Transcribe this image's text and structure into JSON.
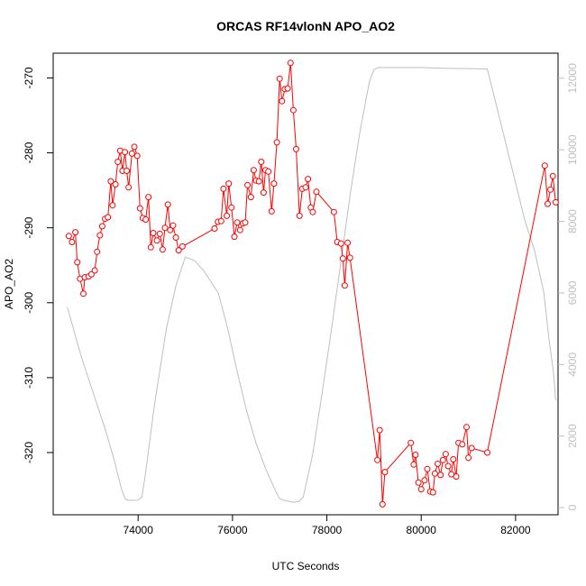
{
  "chart_data": {
    "type": "line",
    "title": "ORCAS RF14vlonN APO_AO2",
    "xlabel": "UTC Seconds",
    "ylabel": "APO_AO2",
    "xlim": [
      72200,
      82900
    ],
    "ylim": [
      -328.3,
      -266.7
    ],
    "y2lim": [
      -200,
      12700
    ],
    "grid": false,
    "x_ticks": [
      74000,
      76000,
      78000,
      80000,
      82000
    ],
    "x_tick_labels": [
      "74000",
      "76000",
      "78000",
      "80000",
      "82000"
    ],
    "y_ticks": [
      -320,
      -310,
      -300,
      -290,
      -280,
      -270
    ],
    "y_tick_labels": [
      "-320",
      "-310",
      "-300",
      "-290",
      "-280",
      "-270"
    ],
    "y2_ticks": [
      0,
      2000,
      4000,
      6000,
      8000,
      10000,
      12000
    ],
    "y2_tick_labels": [
      "0",
      "2000",
      "4000",
      "6000",
      "8000",
      "10000",
      "12000"
    ],
    "colors": {
      "series": "#ff0000",
      "altitude": "#bebebe",
      "axis": "#000000"
    },
    "series": [
      {
        "axis": "left",
        "style": "line+points",
        "points": [
          [
            72530,
            -291.1
          ],
          [
            72600,
            -291.9
          ],
          [
            72670,
            -290.6
          ],
          [
            72710,
            -294.6
          ],
          [
            72770,
            -296.8
          ],
          [
            72840,
            -298.8
          ],
          [
            72870,
            -296.6
          ],
          [
            72950,
            -296.5
          ],
          [
            73010,
            -296.2
          ],
          [
            73080,
            -295.7
          ],
          [
            73130,
            -293.2
          ],
          [
            73190,
            -291.0
          ],
          [
            73240,
            -289.8
          ],
          [
            73300,
            -288.8
          ],
          [
            73360,
            -288.6
          ],
          [
            73420,
            -283.8
          ],
          [
            73460,
            -287.0
          ],
          [
            73520,
            -284.2
          ],
          [
            73570,
            -281.2
          ],
          [
            73620,
            -279.7
          ],
          [
            73670,
            -282.4
          ],
          [
            73720,
            -279.9
          ],
          [
            73760,
            -282.4
          ],
          [
            73800,
            -284.6
          ],
          [
            73870,
            -280.1
          ],
          [
            73920,
            -279.2
          ],
          [
            73980,
            -280.4
          ],
          [
            74040,
            -287.4
          ],
          [
            74100,
            -288.7
          ],
          [
            74160,
            -288.9
          ],
          [
            74220,
            -285.9
          ],
          [
            74270,
            -292.6
          ],
          [
            74320,
            -290.7
          ],
          [
            74400,
            -291.7
          ],
          [
            74460,
            -290.8
          ],
          [
            74520,
            -292.9
          ],
          [
            74570,
            -290.0
          ],
          [
            74630,
            -286.9
          ],
          [
            74680,
            -290.3
          ],
          [
            74740,
            -289.7
          ],
          [
            74800,
            -291.3
          ],
          [
            74860,
            -293.0
          ],
          [
            74940,
            -292.5
          ],
          [
            75620,
            -290.1
          ],
          [
            75690,
            -289.2
          ],
          [
            75760,
            -289.1
          ],
          [
            75810,
            -284.8
          ],
          [
            75880,
            -288.4
          ],
          [
            75920,
            -284.1
          ],
          [
            75980,
            -287.3
          ],
          [
            76040,
            -291.2
          ],
          [
            76100,
            -289.3
          ],
          [
            76160,
            -290.3
          ],
          [
            76220,
            -289.4
          ],
          [
            76270,
            -289.3
          ],
          [
            76320,
            -284.3
          ],
          [
            76390,
            -285.9
          ],
          [
            76450,
            -282.3
          ],
          [
            76500,
            -283.7
          ],
          [
            76560,
            -283.8
          ],
          [
            76610,
            -281.2
          ],
          [
            76660,
            -285.3
          ],
          [
            76700,
            -282.3
          ],
          [
            76760,
            -282.5
          ],
          [
            76830,
            -287.8
          ],
          [
            76880,
            -284.1
          ],
          [
            76940,
            -278.6
          ],
          [
            77000,
            -270.1
          ],
          [
            77050,
            -273.1
          ],
          [
            77110,
            -271.5
          ],
          [
            77170,
            -271.4
          ],
          [
            77230,
            -268.0
          ],
          [
            77290,
            -274.3
          ],
          [
            77350,
            -279.5
          ],
          [
            77420,
            -288.4
          ],
          [
            77480,
            -284.8
          ],
          [
            77550,
            -284.6
          ],
          [
            77600,
            -283.5
          ],
          [
            77660,
            -287.3
          ],
          [
            77700,
            -287.9
          ],
          [
            77780,
            -285.2
          ],
          [
            78150,
            -287.9
          ],
          [
            78220,
            -291.9
          ],
          [
            78300,
            -292.1
          ],
          [
            78340,
            -294.1
          ],
          [
            78380,
            -297.7
          ],
          [
            78440,
            -292.0
          ],
          [
            78490,
            -294.0
          ],
          [
            79070,
            -321.0
          ],
          [
            79120,
            -317.0
          ],
          [
            79180,
            -326.9
          ],
          [
            79230,
            -322.6
          ],
          [
            79780,
            -318.7
          ],
          [
            79840,
            -321.6
          ],
          [
            79880,
            -320.3
          ],
          [
            79940,
            -324.0
          ],
          [
            80000,
            -324.9
          ],
          [
            80070,
            -323.7
          ],
          [
            80130,
            -322.2
          ],
          [
            80190,
            -325.2
          ],
          [
            80250,
            -325.3
          ],
          [
            80290,
            -322.8
          ],
          [
            80350,
            -321.5
          ],
          [
            80410,
            -323.0
          ],
          [
            80460,
            -321.0
          ],
          [
            80520,
            -320.2
          ],
          [
            80570,
            -321.8
          ],
          [
            80640,
            -322.9
          ],
          [
            80680,
            -320.9
          ],
          [
            80740,
            -323.2
          ],
          [
            80790,
            -318.7
          ],
          [
            80870,
            -318.9
          ],
          [
            80960,
            -316.6
          ],
          [
            81000,
            -320.7
          ],
          [
            81070,
            -319.4
          ],
          [
            81400,
            -320.0
          ],
          [
            82620,
            -281.7
          ],
          [
            82680,
            -286.8
          ],
          [
            82740,
            -284.9
          ],
          [
            82790,
            -283.1
          ],
          [
            82850,
            -286.6
          ]
        ]
      },
      {
        "axis": "right",
        "style": "line",
        "points": [
          [
            72500,
            5600
          ],
          [
            72800,
            4200
          ],
          [
            73100,
            3000
          ],
          [
            73300,
            2200
          ],
          [
            73500,
            1300
          ],
          [
            73650,
            500
          ],
          [
            73730,
            230
          ],
          [
            73800,
            200
          ],
          [
            74000,
            210
          ],
          [
            74080,
            300
          ],
          [
            74150,
            900
          ],
          [
            74350,
            2900
          ],
          [
            74600,
            5000
          ],
          [
            74800,
            6200
          ],
          [
            75000,
            7000
          ],
          [
            75200,
            6900
          ],
          [
            75400,
            6600
          ],
          [
            75600,
            6200
          ],
          [
            75700,
            6000
          ],
          [
            75900,
            5000
          ],
          [
            76100,
            3800
          ],
          [
            76300,
            2700
          ],
          [
            76500,
            1800
          ],
          [
            76700,
            1100
          ],
          [
            76900,
            500
          ],
          [
            77000,
            250
          ],
          [
            77100,
            200
          ],
          [
            77300,
            150
          ],
          [
            77400,
            170
          ],
          [
            77500,
            300
          ],
          [
            77700,
            1500
          ],
          [
            77900,
            3200
          ],
          [
            78100,
            5000
          ],
          [
            78300,
            6900
          ],
          [
            78500,
            8800
          ],
          [
            78700,
            10500
          ],
          [
            78900,
            11900
          ],
          [
            79000,
            12250
          ],
          [
            79100,
            12300
          ],
          [
            79500,
            12300
          ],
          [
            80000,
            12300
          ],
          [
            80500,
            12280
          ],
          [
            81000,
            12270
          ],
          [
            81400,
            12260
          ],
          [
            81600,
            11200
          ],
          [
            81900,
            9600
          ],
          [
            82200,
            8000
          ],
          [
            82400,
            7200
          ],
          [
            82600,
            6000
          ],
          [
            82700,
            4800
          ],
          [
            82800,
            3800
          ],
          [
            82850,
            3000
          ]
        ]
      }
    ]
  }
}
